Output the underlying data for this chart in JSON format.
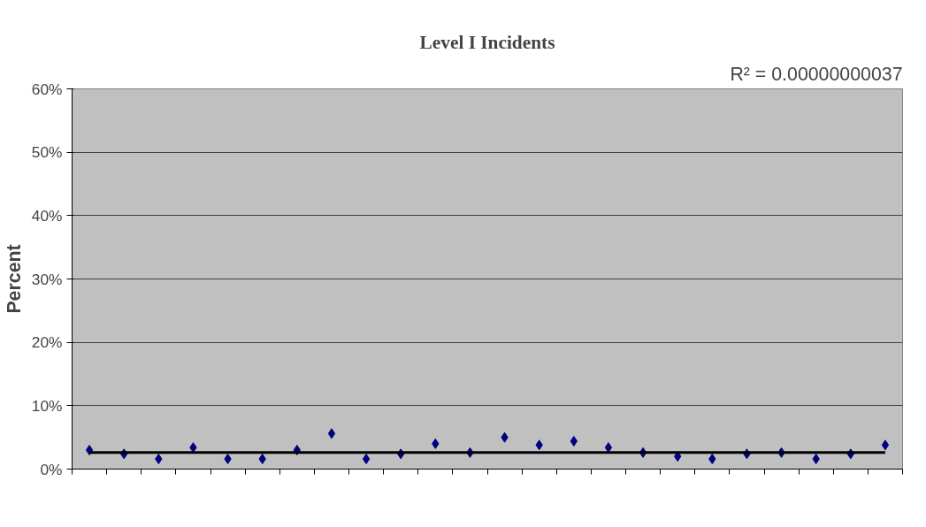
{
  "chart_data": {
    "type": "scatter",
    "title": "Level I Incidents",
    "ylabel": "Percent",
    "annotations": [
      "R² = 0.00000000037"
    ],
    "categories": [
      null,
      null,
      null,
      null,
      null,
      null,
      null,
      null,
      null,
      null,
      null,
      null,
      null,
      null,
      null,
      null,
      null,
      null,
      null,
      null,
      null,
      null,
      null,
      null
    ],
    "series": [
      {
        "color": "#000080",
        "marker": "diamond",
        "values": [
          3.0,
          2.4,
          1.6,
          3.4,
          1.6,
          1.6,
          3.0,
          5.6,
          1.6,
          2.4,
          4.0,
          2.6,
          5.0,
          3.8,
          4.4,
          3.4,
          2.6,
          2.0,
          1.6,
          2.4,
          2.6,
          1.6,
          2.4,
          3.8
        ]
      },
      {
        "type": "line",
        "color": "#000000",
        "values": [
          2.6,
          2.6,
          2.6,
          2.6,
          2.6,
          2.6,
          2.6,
          2.6,
          2.6,
          2.6,
          2.6,
          2.6,
          2.6,
          2.6,
          2.6,
          2.6,
          2.6,
          2.6,
          2.6,
          2.6,
          2.6,
          2.6,
          2.6,
          2.6
        ]
      }
    ],
    "ylim": [
      0,
      60
    ],
    "yticks": [
      {
        "value": 0,
        "label": "0%"
      },
      {
        "value": 10,
        "label": "10%"
      },
      {
        "value": 20,
        "label": "20%"
      },
      {
        "value": 30,
        "label": "30%"
      },
      {
        "value": 40,
        "label": "40%"
      },
      {
        "value": 50,
        "label": "50%"
      },
      {
        "value": 60,
        "label": "60%"
      }
    ],
    "grid": "y"
  }
}
